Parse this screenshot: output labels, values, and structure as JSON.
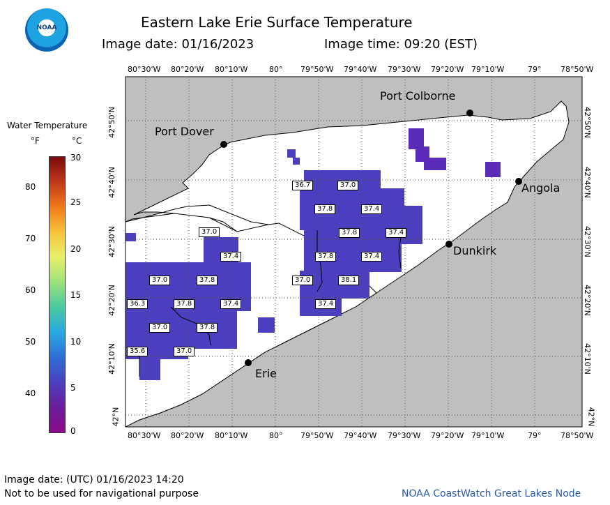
{
  "header": {
    "title": "Eastern Lake Erie Surface Temperature",
    "image_date": "Image date: 01/16/2023",
    "image_time": "Image time: 09:20 (EST)",
    "logo_text": "NOAA"
  },
  "legend": {
    "title": "Water Temperature",
    "unit_f": "°F",
    "unit_c": "°C",
    "f_ticks": [
      "80",
      "70",
      "60",
      "50",
      "40"
    ],
    "c_ticks": [
      "30",
      "25",
      "20",
      "15",
      "10",
      "5",
      "0"
    ],
    "colors": [
      "#7a0a0a",
      "#c0391a",
      "#f07a1a",
      "#f8c33a",
      "#e9f06a",
      "#9be27a",
      "#49c9a0",
      "#2aa7e0",
      "#2e6fd6",
      "#4b3fbf",
      "#6a1e9a",
      "#8a0a8a"
    ]
  },
  "map": {
    "lon_labels": [
      "80°30'W",
      "80°20'W",
      "80°10'W",
      "80°",
      "79°50'W",
      "79°40'W",
      "79°30'W",
      "79°20'W",
      "79°10'W",
      "79°",
      "78°50'W"
    ],
    "lat_labels": [
      "42°50'N",
      "42°40'N",
      "42°30'N",
      "42°20'N",
      "42°10'N",
      "42°N"
    ],
    "places": [
      {
        "name": "Port Colborne"
      },
      {
        "name": "Port Dover"
      },
      {
        "name": "Angola"
      },
      {
        "name": "Dunkirk"
      },
      {
        "name": "Erie"
      }
    ],
    "temps": [
      "36.7",
      "37.0",
      "37.8",
      "37.4",
      "37.8",
      "37.4",
      "37.0",
      "37.4",
      "37.8",
      "37.4",
      "37.0",
      "38.1",
      "37.4",
      "37.0",
      "37.8",
      "36.3",
      "37.8",
      "37.4",
      "37.0",
      "37.8",
      "35.6",
      "37.0"
    ],
    "colors": {
      "land": "#bfbfbf",
      "water": "#ffffff",
      "temp_fill": "#4b3fbf",
      "temp_dark": "#5a2ab8",
      "grid": "#555555"
    }
  },
  "footer": {
    "utc_date": "Image date: (UTC) 01/16/2023  14:20",
    "disclaimer": "Not to be used for navigational purpose",
    "credit": "NOAA CoastWatch Great Lakes Node"
  }
}
